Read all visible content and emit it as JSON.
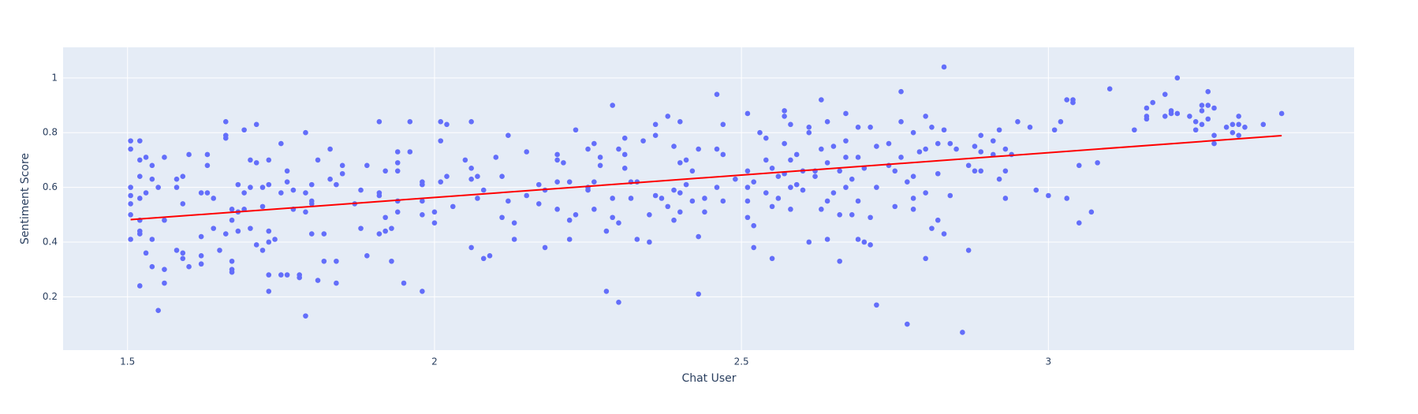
{
  "chart_data": {
    "type": "scatter",
    "x_label": "Chat User",
    "y_label": "Sentiment Score",
    "xlim": [
      1.395,
      3.498
    ],
    "ylim": [
      0.005,
      1.112
    ],
    "xticks": [
      1.5,
      2,
      2.5,
      3
    ],
    "yticks": [
      0.2,
      0.4,
      0.6,
      0.8,
      1
    ],
    "grid": true,
    "series": [
      {
        "color": "#636efa",
        "mode": "markers",
        "x": [
          1.505,
          1.505,
          1.505,
          1.505,
          1.505,
          1.505,
          1.505,
          1.52,
          1.52,
          1.52,
          1.52,
          1.52,
          1.52,
          1.52,
          1.52,
          1.53,
          1.53,
          1.53,
          1.54,
          1.54,
          1.54,
          1.54,
          1.55,
          1.55,
          1.56,
          1.56,
          1.56,
          1.56,
          1.58,
          1.58,
          1.58,
          1.59,
          1.59,
          1.59,
          1.59,
          1.6,
          1.6,
          1.62,
          1.62,
          1.62,
          1.62,
          1.63,
          1.63,
          1.63,
          1.64,
          1.64,
          1.65,
          1.66,
          1.66,
          1.66,
          1.66,
          1.67,
          1.67,
          1.67,
          1.67,
          1.67,
          1.68,
          1.68,
          1.68,
          1.69,
          1.69,
          1.69,
          1.7,
          1.7,
          1.7,
          1.71,
          1.71,
          1.71,
          1.72,
          1.72,
          1.72,
          1.73,
          1.73,
          1.73,
          1.73,
          1.73,
          1.73,
          1.74,
          1.75,
          1.75,
          1.75,
          1.76,
          1.76,
          1.76,
          1.77,
          1.77,
          1.78,
          1.78,
          1.79,
          1.79,
          1.79,
          1.79,
          1.8,
          1.8,
          1.8,
          1.8,
          1.81,
          1.81,
          1.82,
          1.82,
          1.83,
          1.83,
          1.84,
          1.84,
          1.84,
          1.85,
          1.85,
          1.87,
          1.88,
          1.88,
          1.89,
          1.89,
          1.91,
          1.91,
          1.91,
          1.91,
          1.92,
          1.92,
          1.92,
          1.93,
          1.93,
          1.94,
          1.94,
          1.94,
          1.94,
          1.94,
          1.95,
          1.96,
          1.96,
          1.98,
          1.98,
          1.98,
          1.98,
          1.98,
          2.0,
          2.0,
          2.01,
          2.01,
          2.01,
          2.02,
          2.02,
          2.03,
          2.05,
          2.06,
          2.06,
          2.06,
          2.06,
          2.07,
          2.07,
          2.08,
          2.08,
          2.09,
          2.1,
          2.11,
          2.11,
          2.12,
          2.12,
          2.13,
          2.13,
          2.15,
          2.15,
          2.17,
          2.17,
          2.18,
          2.18,
          2.2,
          2.2,
          2.2,
          2.2,
          2.21,
          2.22,
          2.22,
          2.22,
          2.23,
          2.23,
          2.25,
          2.25,
          2.25,
          2.26,
          2.26,
          2.26,
          2.27,
          2.27,
          2.28,
          2.28,
          2.29,
          2.29,
          2.29,
          2.3,
          2.3,
          2.3,
          2.31,
          2.31,
          2.31,
          2.32,
          2.32,
          2.33,
          2.33,
          2.34,
          2.35,
          2.35,
          2.36,
          2.36,
          2.36,
          2.37,
          2.38,
          2.38,
          2.39,
          2.39,
          2.39,
          2.4,
          2.4,
          2.4,
          2.4,
          2.41,
          2.41,
          2.42,
          2.42,
          2.43,
          2.43,
          2.43,
          2.44,
          2.44,
          2.46,
          2.46,
          2.46,
          2.47,
          2.47,
          2.47,
          2.49,
          2.51,
          2.51,
          2.51,
          2.51,
          2.51,
          2.52,
          2.52,
          2.52,
          2.53,
          2.54,
          2.54,
          2.54,
          2.55,
          2.55,
          2.55,
          2.56,
          2.56,
          2.57,
          2.57,
          2.57,
          2.57,
          2.58,
          2.58,
          2.58,
          2.58,
          2.59,
          2.59,
          2.6,
          2.6,
          2.61,
          2.61,
          2.61,
          2.62,
          2.62,
          2.63,
          2.63,
          2.63,
          2.64,
          2.64,
          2.64,
          2.64,
          2.65,
          2.65,
          2.66,
          2.66,
          2.66,
          2.67,
          2.67,
          2.67,
          2.67,
          2.68,
          2.68,
          2.69,
          2.69,
          2.69,
          2.69,
          2.7,
          2.7,
          2.71,
          2.71,
          2.71,
          2.72,
          2.72,
          2.72,
          2.74,
          2.74,
          2.75,
          2.75,
          2.76,
          2.76,
          2.76,
          2.77,
          2.77,
          2.78,
          2.78,
          2.78,
          2.78,
          2.79,
          2.8,
          2.8,
          2.8,
          2.8,
          2.81,
          2.81,
          2.82,
          2.82,
          2.82,
          2.83,
          2.83,
          2.83,
          2.84,
          2.84,
          2.85,
          2.86,
          2.87,
          2.87,
          2.88,
          2.88,
          2.89,
          2.89,
          2.89,
          2.91,
          2.91,
          2.92,
          2.92,
          2.93,
          2.93,
          2.93,
          2.94,
          2.95,
          2.97,
          2.98,
          3.0,
          3.01,
          3.02,
          3.03,
          3.03,
          3.04,
          3.04,
          3.05,
          3.05,
          3.07,
          3.08,
          3.1,
          3.14,
          3.16,
          3.16,
          3.16,
          3.17,
          3.19,
          3.19,
          3.2,
          3.2,
          3.21,
          3.21,
          3.23,
          3.24,
          3.24,
          3.25,
          3.25,
          3.25,
          3.26,
          3.26,
          3.26,
          3.27,
          3.27,
          3.27,
          3.29,
          3.3,
          3.3,
          3.31,
          3.31,
          3.31,
          3.32,
          3.35,
          3.38
        ],
        "values": [
          0.77,
          0.74,
          0.6,
          0.57,
          0.54,
          0.5,
          0.41,
          0.77,
          0.7,
          0.64,
          0.56,
          0.48,
          0.44,
          0.43,
          0.24,
          0.71,
          0.58,
          0.36,
          0.68,
          0.63,
          0.41,
          0.31,
          0.6,
          0.15,
          0.71,
          0.48,
          0.3,
          0.25,
          0.63,
          0.6,
          0.37,
          0.64,
          0.54,
          0.36,
          0.34,
          0.72,
          0.31,
          0.58,
          0.42,
          0.32,
          0.35,
          0.72,
          0.68,
          0.58,
          0.56,
          0.45,
          0.37,
          0.84,
          0.79,
          0.78,
          0.43,
          0.52,
          0.48,
          0.33,
          0.3,
          0.29,
          0.61,
          0.51,
          0.44,
          0.81,
          0.58,
          0.52,
          0.7,
          0.6,
          0.45,
          0.83,
          0.69,
          0.39,
          0.6,
          0.53,
          0.37,
          0.7,
          0.61,
          0.44,
          0.4,
          0.28,
          0.22,
          0.41,
          0.76,
          0.58,
          0.28,
          0.62,
          0.66,
          0.28,
          0.59,
          0.52,
          0.28,
          0.27,
          0.8,
          0.58,
          0.51,
          0.13,
          0.61,
          0.43,
          0.55,
          0.54,
          0.7,
          0.26,
          0.33,
          0.43,
          0.74,
          0.63,
          0.61,
          0.33,
          0.25,
          0.68,
          0.65,
          0.54,
          0.59,
          0.45,
          0.35,
          0.68,
          0.84,
          0.58,
          0.57,
          0.43,
          0.66,
          0.49,
          0.44,
          0.33,
          0.45,
          0.73,
          0.66,
          0.51,
          0.55,
          0.69,
          0.25,
          0.84,
          0.73,
          0.62,
          0.61,
          0.55,
          0.5,
          0.22,
          0.47,
          0.51,
          0.84,
          0.77,
          0.62,
          0.83,
          0.64,
          0.53,
          0.7,
          0.84,
          0.63,
          0.38,
          0.67,
          0.56,
          0.64,
          0.59,
          0.34,
          0.35,
          0.71,
          0.64,
          0.49,
          0.79,
          0.55,
          0.47,
          0.41,
          0.57,
          0.73,
          0.61,
          0.54,
          0.59,
          0.38,
          0.72,
          0.7,
          0.62,
          0.52,
          0.69,
          0.48,
          0.41,
          0.62,
          0.81,
          0.5,
          0.6,
          0.59,
          0.74,
          0.76,
          0.52,
          0.62,
          0.68,
          0.71,
          0.44,
          0.22,
          0.9,
          0.49,
          0.56,
          0.74,
          0.47,
          0.18,
          0.78,
          0.67,
          0.72,
          0.62,
          0.56,
          0.41,
          0.62,
          0.77,
          0.5,
          0.4,
          0.83,
          0.79,
          0.57,
          0.56,
          0.86,
          0.53,
          0.75,
          0.59,
          0.48,
          0.84,
          0.69,
          0.58,
          0.51,
          0.61,
          0.7,
          0.66,
          0.55,
          0.74,
          0.42,
          0.21,
          0.56,
          0.51,
          0.94,
          0.74,
          0.6,
          0.72,
          0.83,
          0.55,
          0.63,
          0.6,
          0.66,
          0.55,
          0.49,
          0.87,
          0.62,
          0.38,
          0.46,
          0.8,
          0.78,
          0.58,
          0.7,
          0.34,
          0.67,
          0.53,
          0.64,
          0.56,
          0.88,
          0.86,
          0.76,
          0.65,
          0.83,
          0.7,
          0.52,
          0.6,
          0.72,
          0.61,
          0.59,
          0.66,
          0.82,
          0.8,
          0.4,
          0.64,
          0.66,
          0.92,
          0.74,
          0.52,
          0.84,
          0.69,
          0.55,
          0.41,
          0.75,
          0.58,
          0.66,
          0.5,
          0.33,
          0.87,
          0.77,
          0.6,
          0.71,
          0.63,
          0.5,
          0.82,
          0.71,
          0.55,
          0.41,
          0.67,
          0.4,
          0.82,
          0.49,
          0.39,
          0.75,
          0.6,
          0.17,
          0.68,
          0.76,
          0.66,
          0.53,
          0.95,
          0.84,
          0.71,
          0.62,
          0.1,
          0.8,
          0.64,
          0.56,
          0.52,
          0.73,
          0.86,
          0.74,
          0.58,
          0.34,
          0.82,
          0.45,
          0.76,
          0.65,
          0.48,
          0.43,
          1.04,
          0.81,
          0.76,
          0.57,
          0.74,
          0.07,
          0.68,
          0.37,
          0.75,
          0.66,
          0.73,
          0.79,
          0.66,
          0.72,
          0.77,
          0.81,
          0.63,
          0.74,
          0.56,
          0.66,
          0.72,
          0.84,
          0.82,
          0.59,
          0.57,
          0.81,
          0.84,
          0.92,
          0.56,
          0.92,
          0.91,
          0.47,
          0.68,
          0.51,
          0.69,
          0.96,
          0.81,
          0.89,
          0.86,
          0.85,
          0.91,
          0.94,
          0.86,
          0.88,
          0.87,
          1.0,
          0.87,
          0.86,
          0.84,
          0.81,
          0.9,
          0.83,
          0.88,
          0.95,
          0.9,
          0.85,
          0.89,
          0.79,
          0.76,
          0.82,
          0.83,
          0.8,
          0.83,
          0.79,
          0.86,
          0.82,
          0.83,
          0.87
        ]
      },
      {
        "color": "#ff0000",
        "mode": "lines",
        "x": [
          1.505,
          3.38
        ],
        "values": [
          0.482,
          0.789
        ]
      }
    ]
  }
}
